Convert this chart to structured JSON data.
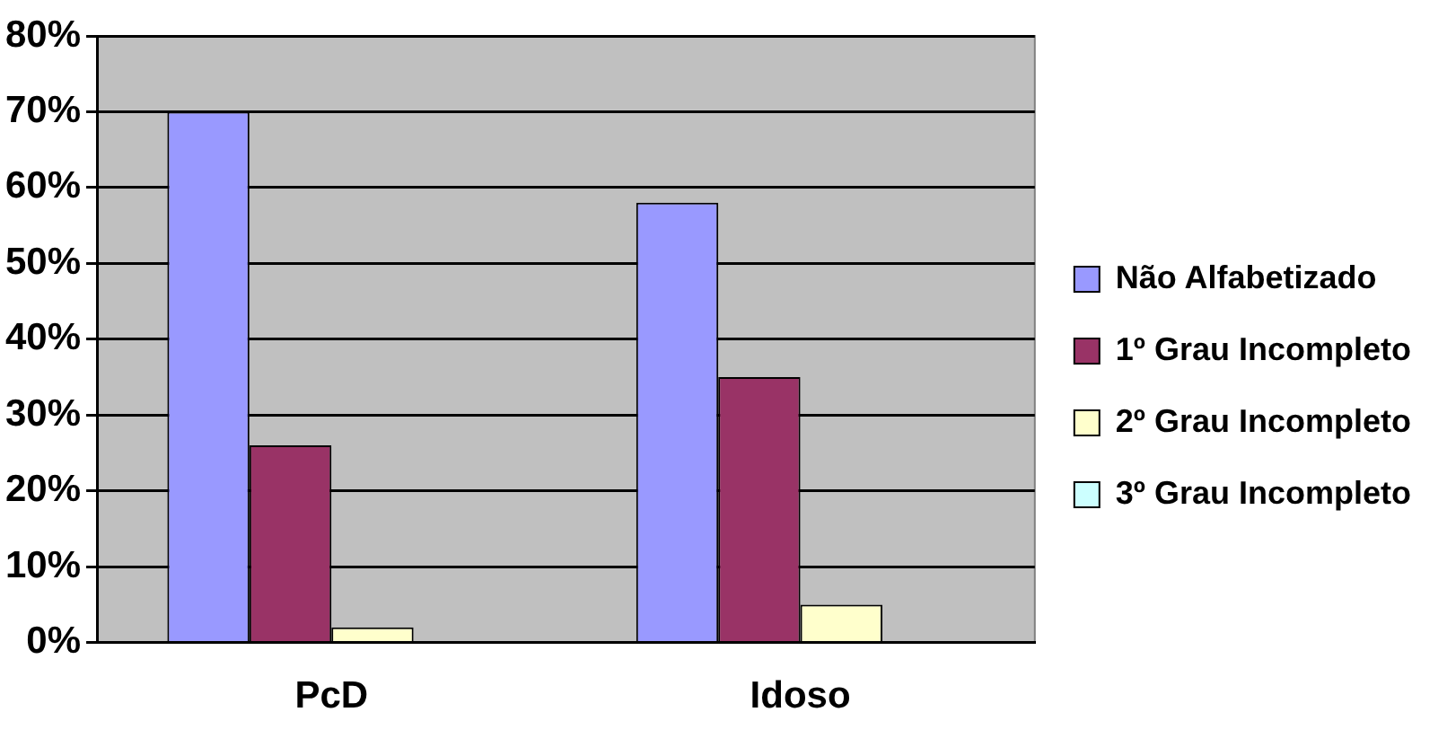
{
  "chart_data": {
    "type": "bar",
    "categories": [
      "PcD",
      "Idoso"
    ],
    "series": [
      {
        "name": "Não Alfabetizado",
        "color": "#9999ff",
        "values": [
          70,
          58
        ]
      },
      {
        "name": "1º Grau Incompleto",
        "color": "#993366",
        "values": [
          26,
          35
        ]
      },
      {
        "name": "2º Grau Incompleto",
        "color": "#ffffcc",
        "values": [
          2,
          5
        ]
      },
      {
        "name": "3º Grau Incompleto",
        "color": "#ccffff",
        "values": [
          0,
          0
        ]
      }
    ],
    "ylim": [
      0,
      80
    ],
    "yticks": [
      {
        "value": 0,
        "label": "0%"
      },
      {
        "value": 10,
        "label": "10%"
      },
      {
        "value": 20,
        "label": "20%"
      },
      {
        "value": 30,
        "label": "30%"
      },
      {
        "value": 40,
        "label": "40%"
      },
      {
        "value": 50,
        "label": "50%"
      },
      {
        "value": 60,
        "label": "60%"
      },
      {
        "value": 70,
        "label": "70%"
      },
      {
        "value": 80,
        "label": "80%"
      }
    ],
    "grid": "y",
    "legend": "right"
  }
}
